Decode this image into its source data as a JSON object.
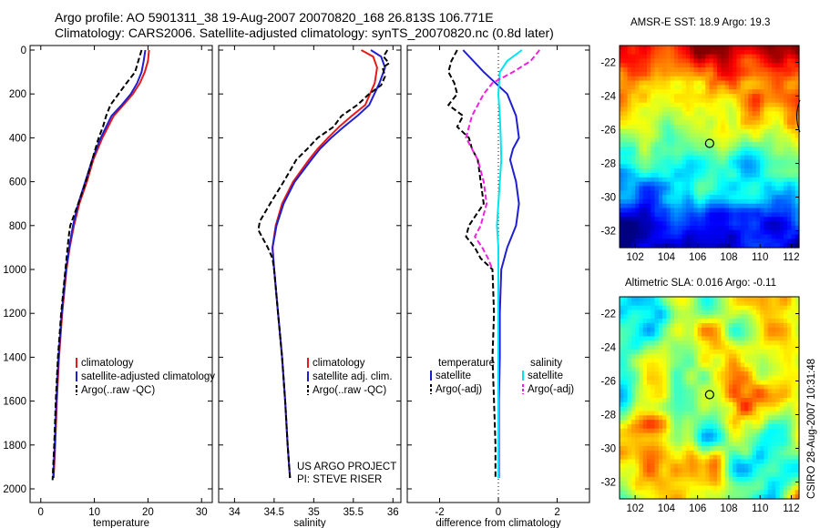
{
  "header": {
    "title_line1": "Argo profile: AO 5901311_38 19-Aug-2007 20070820_168 26.813S 106.771E",
    "title_line2": "Climatology: CARS2006. Satellite-adjusted climatology: synTS_20070820.nc (0.8d later)"
  },
  "side_label": "CSIRO 28-Aug-2007 10:31:48",
  "colors": {
    "climatology": "#e41a1c",
    "satellite": "#1f1fd0",
    "argo": "#000000",
    "sat_sal": "#00e5ee",
    "argo_adj_sal": "#ee22dd"
  },
  "chart_data": [
    {
      "type": "line",
      "name": "temperature-panel",
      "xlabel": "temperature",
      "ylabel": "",
      "xlim": [
        -2,
        32
      ],
      "ylim": [
        2050,
        0
      ],
      "xticks": [
        "0",
        "10",
        "20",
        "30"
      ],
      "yticks": [
        "0",
        "200",
        "400",
        "600",
        "800",
        "1000",
        "1200",
        "1400",
        "1600",
        "1800",
        "2000"
      ],
      "legend": [
        "climatology",
        "satellite-adjusted climatology",
        "Argo(..raw -QC)"
      ],
      "series": [
        {
          "name": "climatology",
          "style": "solid",
          "color": "#e41a1c",
          "depth": [
            0,
            50,
            100,
            150,
            200,
            250,
            300,
            400,
            500,
            600,
            700,
            800,
            900,
            1000,
            1200,
            1400,
            1600,
            1800,
            1950
          ],
          "values": [
            20.2,
            20.0,
            19.4,
            18.5,
            17.2,
            15.4,
            13.6,
            11.5,
            9.8,
            8.6,
            7.2,
            6.2,
            5.4,
            4.8,
            4.0,
            3.4,
            3.0,
            2.7,
            2.4
          ]
        },
        {
          "name": "satellite-adjusted climatology",
          "style": "solid",
          "color": "#1f1fd0",
          "depth": [
            0,
            50,
            100,
            150,
            200,
            250,
            300,
            400,
            500,
            600,
            700,
            800,
            900,
            1000,
            1200,
            1400,
            1600,
            1800,
            1950
          ],
          "values": [
            19.5,
            19.2,
            18.8,
            18.0,
            16.8,
            15.1,
            13.2,
            11.2,
            9.6,
            8.3,
            7.0,
            6.0,
            5.3,
            4.7,
            3.9,
            3.3,
            2.9,
            2.6,
            2.3
          ]
        },
        {
          "name": "Argo(..raw -QC)",
          "style": "dashed",
          "color": "#000000",
          "depth": [
            0,
            50,
            100,
            150,
            200,
            250,
            300,
            350,
            400,
            500,
            600,
            700,
            800,
            850,
            900,
            1000,
            1200,
            1400,
            1600,
            1800,
            1960
          ],
          "values": [
            18.8,
            18.2,
            17.6,
            16.0,
            14.5,
            13.0,
            12.2,
            11.6,
            10.8,
            9.6,
            8.4,
            7.0,
            5.5,
            5.2,
            5.0,
            4.6,
            3.8,
            3.2,
            2.8,
            2.5,
            2.2
          ]
        }
      ]
    },
    {
      "type": "line",
      "name": "salinity-panel",
      "xlabel": "salinity",
      "ylabel": "",
      "xlim": [
        33.8,
        36.1
      ],
      "ylim": [
        2050,
        0
      ],
      "xticks": [
        "34",
        "34.5",
        "35",
        "35.5",
        "36"
      ],
      "legend": [
        "climatology",
        "satellite adj. clim.",
        "Argo(..raw -QC)"
      ],
      "annotation": [
        "US ARGO PROJECT",
        "PI: STEVE RISER"
      ],
      "series": [
        {
          "name": "climatology",
          "style": "solid",
          "color": "#e41a1c",
          "depth": [
            0,
            30,
            80,
            150,
            250,
            300,
            350,
            400,
            450,
            500,
            600,
            700,
            800,
            900,
            1000,
            1200,
            1400,
            1600,
            1800,
            1950
          ],
          "values": [
            35.6,
            35.75,
            35.8,
            35.77,
            35.65,
            35.48,
            35.32,
            35.18,
            35.05,
            34.94,
            34.74,
            34.6,
            34.52,
            34.48,
            34.5,
            34.55,
            34.6,
            34.64,
            34.67,
            34.7
          ]
        },
        {
          "name": "satellite adj. clim.",
          "style": "solid",
          "color": "#1f1fd0",
          "depth": [
            0,
            30,
            80,
            150,
            250,
            300,
            350,
            400,
            450,
            500,
            600,
            700,
            800,
            900,
            1000,
            1200,
            1400,
            1600,
            1800,
            1950
          ],
          "values": [
            35.72,
            35.85,
            35.9,
            35.83,
            35.7,
            35.55,
            35.38,
            35.22,
            35.08,
            34.97,
            34.76,
            34.62,
            34.53,
            34.48,
            34.5,
            34.55,
            34.6,
            34.64,
            34.67,
            34.7
          ]
        },
        {
          "name": "Argo(..raw -QC)",
          "style": "dashed",
          "color": "#000000",
          "depth": [
            0,
            30,
            60,
            80,
            120,
            160,
            200,
            250,
            300,
            350,
            400,
            450,
            500,
            550,
            600,
            700,
            780,
            820,
            860,
            900,
            950,
            1000,
            1200,
            1400,
            1600,
            1800,
            1950
          ],
          "values": [
            35.93,
            35.88,
            35.95,
            35.87,
            35.9,
            35.85,
            35.7,
            35.55,
            35.35,
            35.25,
            35.05,
            34.92,
            34.78,
            34.7,
            34.62,
            34.45,
            34.32,
            34.3,
            34.36,
            34.42,
            34.48,
            34.5,
            34.55,
            34.6,
            34.64,
            34.67,
            34.7
          ]
        }
      ]
    },
    {
      "type": "line",
      "name": "difference-panel",
      "xlabel": "difference from climatology",
      "ylabel": "",
      "xlim": [
        -3.1,
        3.1
      ],
      "ylim": [
        2050,
        0
      ],
      "xticks": [
        "-2",
        "0",
        "2"
      ],
      "legend_temperature": {
        "heading": "temperature",
        "items": [
          "satellite",
          "Argo(-adj)"
        ]
      },
      "legend_salinity": {
        "heading": "salinity",
        "items": [
          "satellite",
          "Argo(-adj)"
        ]
      },
      "series": [
        {
          "name": "temperature satellite",
          "style": "solid",
          "color": "#1f1fd0",
          "depth": [
            0,
            100,
            200,
            300,
            400,
            450,
            500,
            600,
            700,
            800,
            900,
            1000,
            1200,
            1400,
            1600,
            1800,
            1950
          ],
          "values": [
            -1.2,
            -0.5,
            0.3,
            0.6,
            0.7,
            0.5,
            0.4,
            0.6,
            0.7,
            0.6,
            0.3,
            0.1,
            0.05,
            0.05,
            0.02,
            0.02,
            0.02
          ]
        },
        {
          "name": "temperature Argo(-adj)",
          "style": "dashed",
          "color": "#000000",
          "depth": [
            0,
            50,
            100,
            150,
            200,
            250,
            300,
            350,
            400,
            450,
            500,
            600,
            700,
            800,
            850,
            900,
            950,
            1000,
            1200,
            1400,
            1600,
            1800,
            1950
          ],
          "values": [
            -1.4,
            -1.6,
            -1.7,
            -1.5,
            -1.4,
            -1.7,
            -1.2,
            -1.4,
            -1.0,
            -0.9,
            -0.7,
            -0.6,
            -0.5,
            -1.0,
            -1.1,
            -0.8,
            -0.6,
            -0.2,
            -0.15,
            -0.2,
            -0.15,
            -0.1,
            -0.1
          ]
        },
        {
          "name": "salinity satellite",
          "style": "solid",
          "color": "#00e5ee",
          "depth": [
            0,
            50,
            100,
            200,
            300,
            400,
            500,
            600,
            700,
            800,
            900,
            1000,
            1200,
            1400,
            1600,
            1800,
            1950
          ],
          "values": [
            0.8,
            0.3,
            0.05,
            0.0,
            0.05,
            0.08,
            0.1,
            0.05,
            0.0,
            -0.05,
            0.0,
            0.0,
            0.0,
            0.0,
            0.0,
            0.0,
            0.0
          ]
        },
        {
          "name": "salinity Argo(-adj)",
          "style": "dashed",
          "color": "#ee22dd",
          "depth": [
            0,
            50,
            100,
            150,
            200,
            300,
            400,
            500,
            600,
            700,
            800,
            850,
            900,
            950,
            1000
          ],
          "values": [
            1.4,
            1.1,
            0.5,
            -0.2,
            -0.5,
            -0.9,
            -1.1,
            -0.7,
            -0.5,
            -0.4,
            -0.6,
            -0.8,
            -0.55,
            -0.35,
            -0.2
          ]
        }
      ]
    },
    {
      "type": "heatmap",
      "name": "sst-map",
      "title": "AMSR-E SST: 18.9 Argo: 19.3",
      "xticks": [
        "102",
        "104",
        "106",
        "108",
        "110",
        "112"
      ],
      "yticks": [
        "-22",
        "-24",
        "-26",
        "-28",
        "-30",
        "-32"
      ],
      "xlim": [
        101,
        112.5
      ],
      "ylim": [
        -33,
        -21
      ],
      "marker": {
        "lon": 106.77,
        "lat": -26.81
      }
    },
    {
      "type": "heatmap",
      "name": "sla-map",
      "title": "Altimetric SLA: 0.016 Argo: -0.11",
      "xticks": [
        "102",
        "104",
        "106",
        "108",
        "110",
        "112"
      ],
      "yticks": [
        "-22",
        "-24",
        "-26",
        "-28",
        "-30",
        "-32"
      ],
      "xlim": [
        101,
        112.5
      ],
      "ylim": [
        -33,
        -21
      ],
      "marker": {
        "lon": 106.77,
        "lat": -26.81
      }
    }
  ]
}
